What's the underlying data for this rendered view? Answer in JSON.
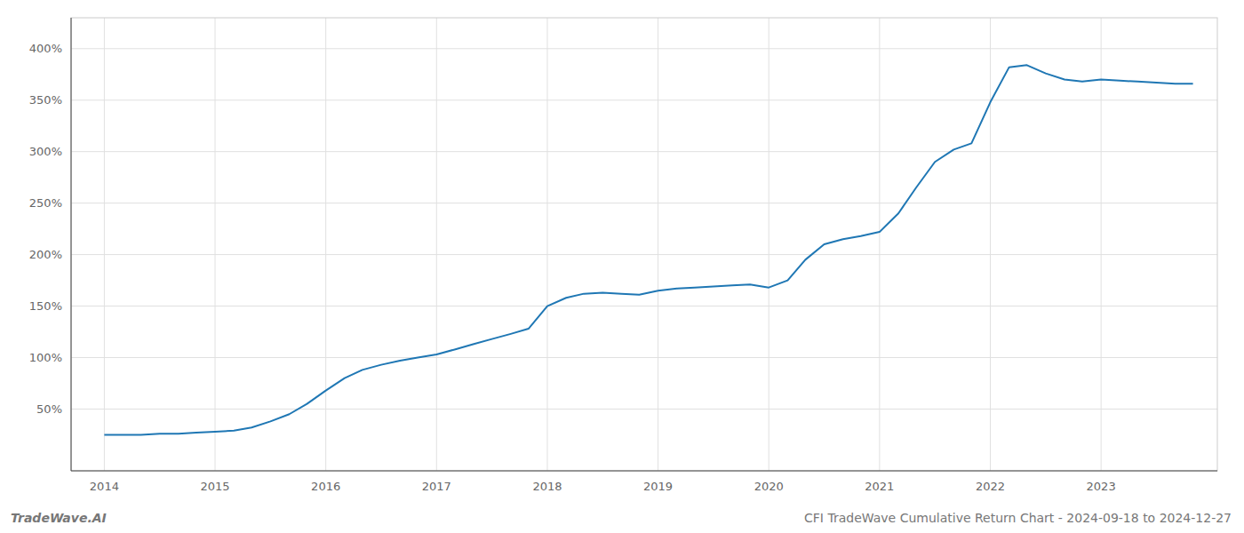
{
  "chart_data": {
    "type": "line",
    "title": "CFI TradeWave Cumulative Return Chart - 2024-09-18 to 2024-12-27",
    "annotations": [
      "TradeWave.AI"
    ],
    "color": "#1f77b4",
    "x": [
      2014.0,
      2014.17,
      2014.33,
      2014.5,
      2014.67,
      2014.83,
      2015.0,
      2015.17,
      2015.33,
      2015.5,
      2015.67,
      2015.83,
      2016.0,
      2016.17,
      2016.33,
      2016.5,
      2016.67,
      2016.83,
      2017.0,
      2017.17,
      2017.33,
      2017.5,
      2017.67,
      2017.83,
      2018.0,
      2018.17,
      2018.33,
      2018.5,
      2018.67,
      2018.83,
      2019.0,
      2019.17,
      2019.33,
      2019.5,
      2019.67,
      2019.83,
      2020.0,
      2020.17,
      2020.33,
      2020.5,
      2020.67,
      2020.83,
      2021.0,
      2021.17,
      2021.33,
      2021.5,
      2021.67,
      2021.83,
      2022.0,
      2022.17,
      2022.33,
      2022.5,
      2022.67,
      2022.83,
      2023.0,
      2023.17,
      2023.33,
      2023.5,
      2023.67,
      2023.83
    ],
    "values": [
      25,
      25,
      25,
      26,
      26,
      27,
      28,
      29,
      32,
      38,
      45,
      55,
      68,
      80,
      88,
      93,
      97,
      100,
      103,
      108,
      113,
      118,
      123,
      128,
      150,
      158,
      162,
      163,
      162,
      161,
      165,
      167,
      168,
      169,
      170,
      171,
      168,
      175,
      195,
      210,
      215,
      218,
      222,
      240,
      265,
      290,
      302,
      308,
      348,
      382,
      384,
      376,
      370,
      368,
      370,
      369,
      368,
      367,
      366,
      366
    ],
    "xlim": [
      2013.7,
      2024.05
    ],
    "ylim": [
      -10,
      430
    ],
    "xticks": [
      2014,
      2015,
      2016,
      2017,
      2018,
      2019,
      2020,
      2021,
      2022,
      2023
    ],
    "yticks": [
      {
        "value": 50,
        "label": "50%"
      },
      {
        "value": 100,
        "label": "100%"
      },
      {
        "value": 150,
        "label": "150%"
      },
      {
        "value": 200,
        "label": "200%"
      },
      {
        "value": 250,
        "label": "250%"
      },
      {
        "value": 300,
        "label": "300%"
      },
      {
        "value": 350,
        "label": "350%"
      },
      {
        "value": 400,
        "label": "400%"
      }
    ],
    "grid": true
  }
}
